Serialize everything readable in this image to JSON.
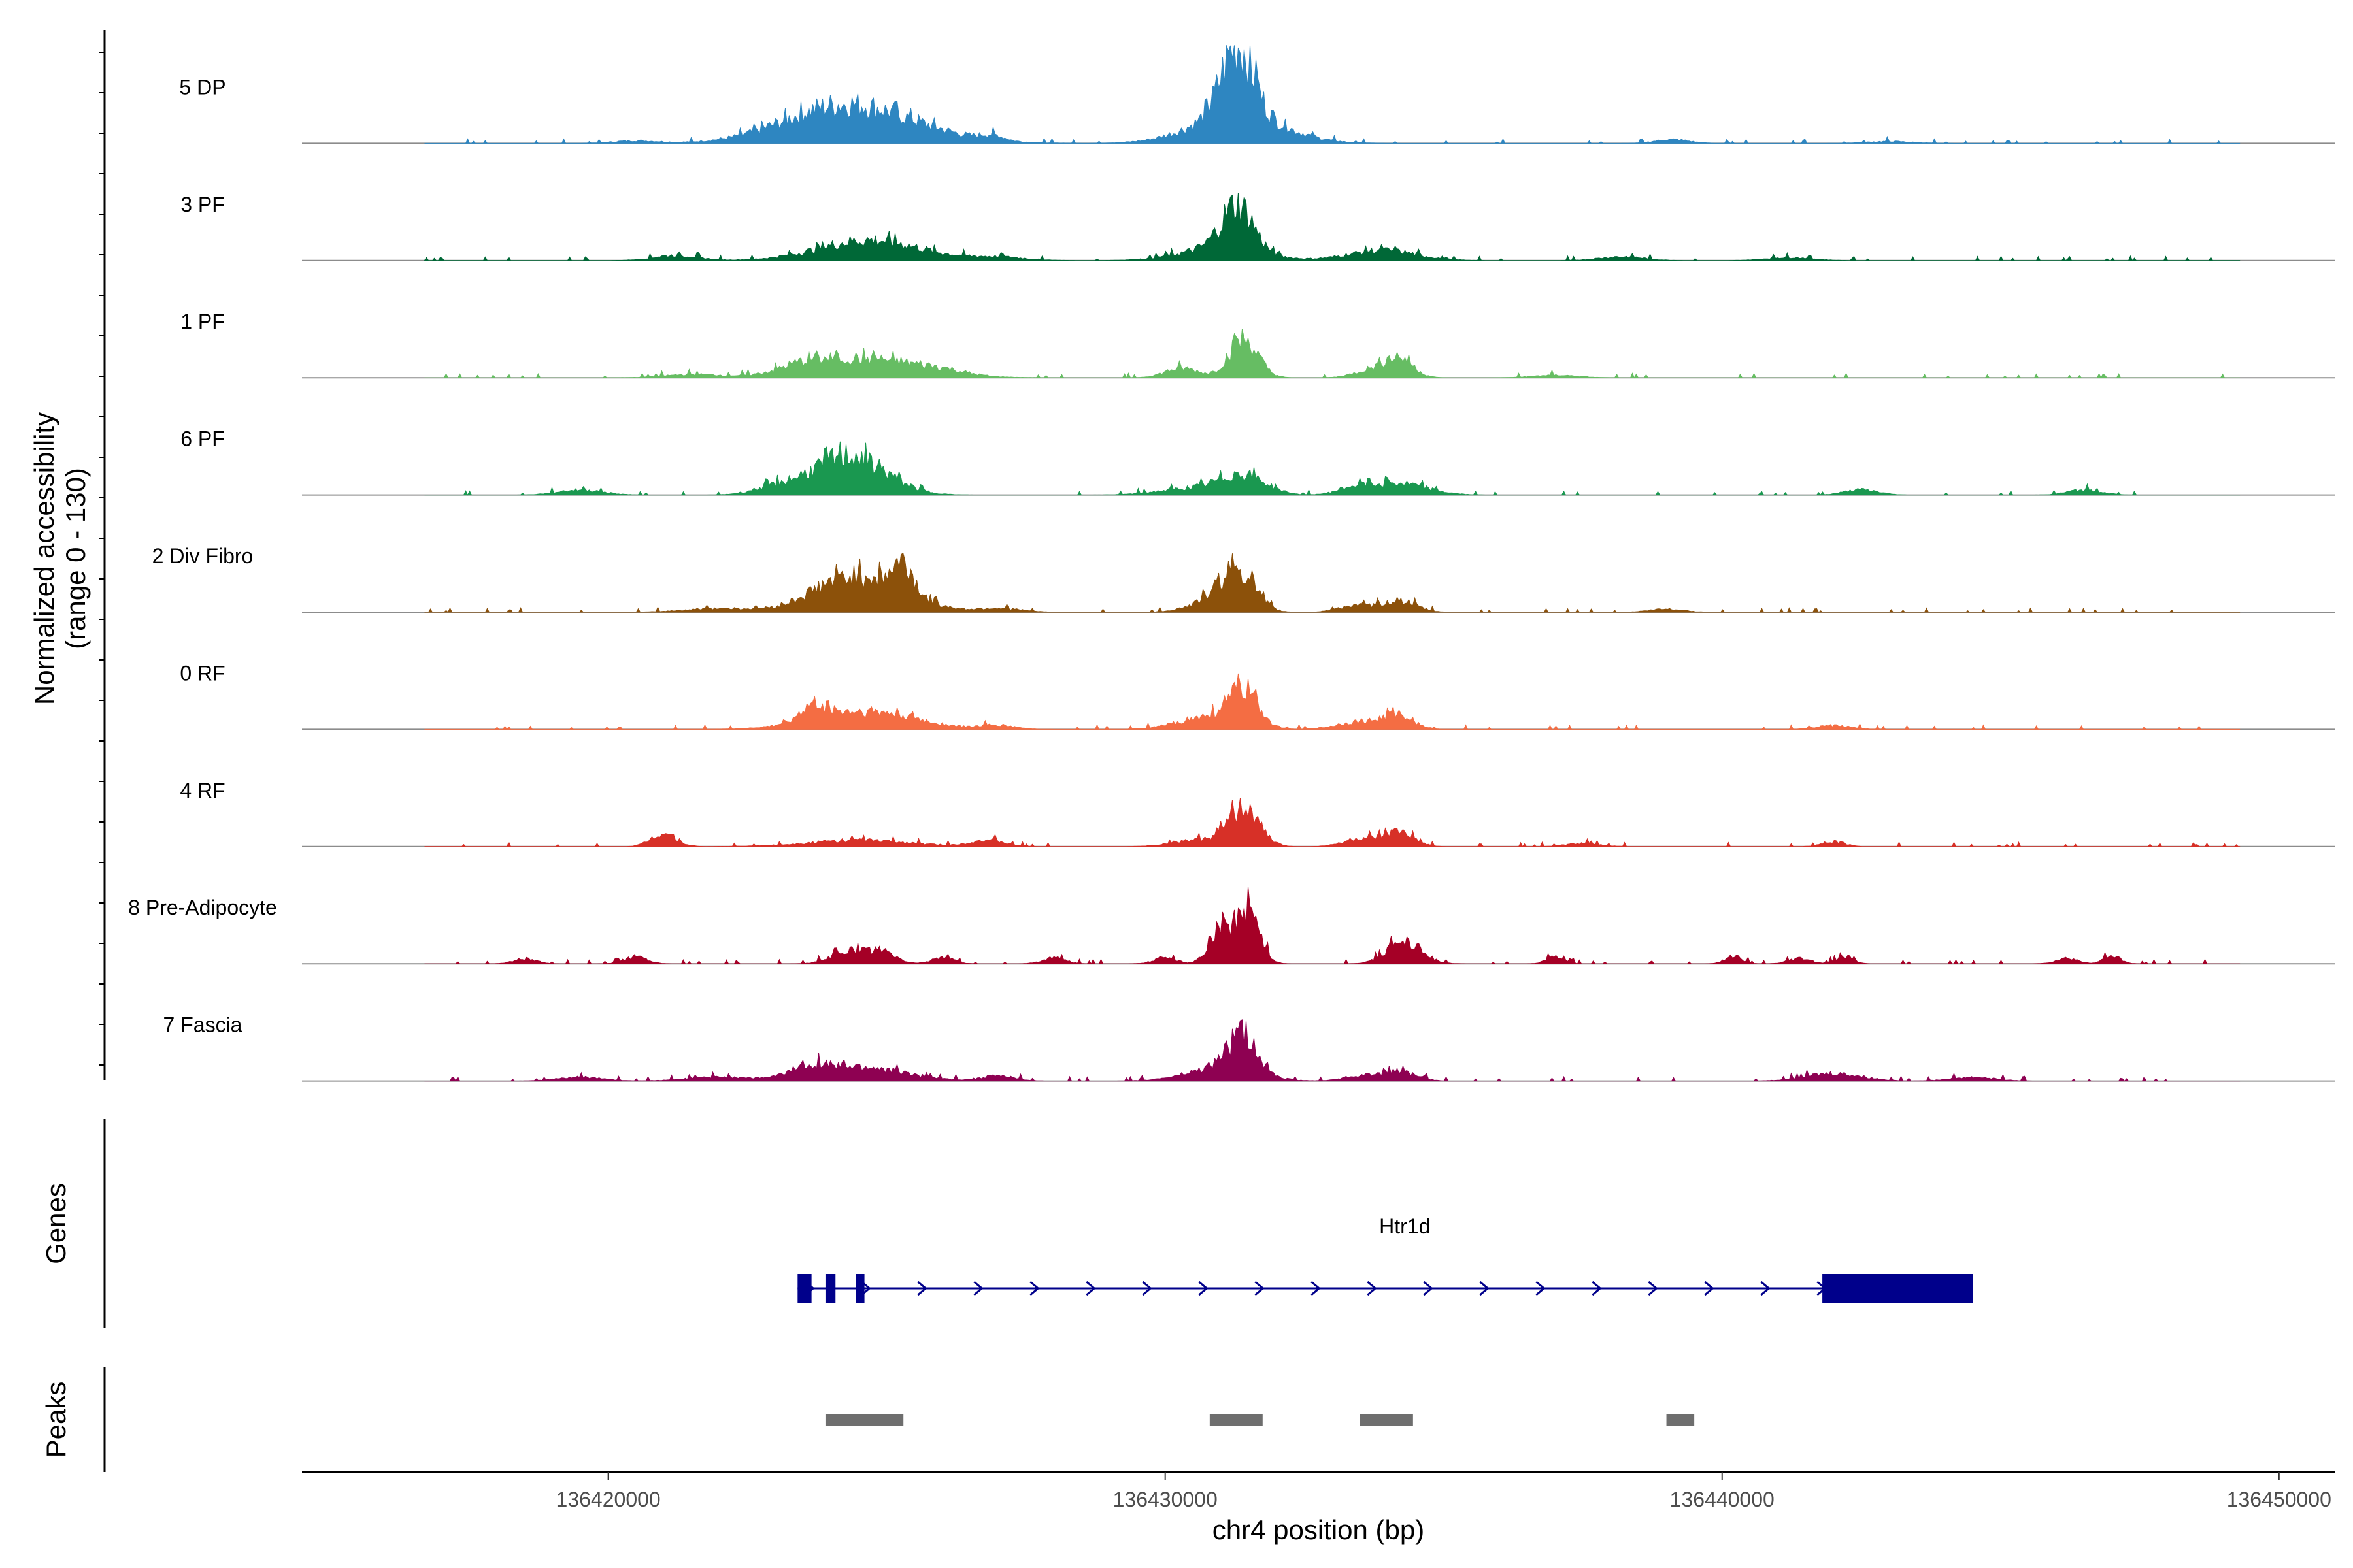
{
  "chart_data": {
    "type": "coverage",
    "ylabel_line1": "Normalized accessibility",
    "ylabel_line2": "(range 0 - 130)",
    "y_range": [
      0,
      130
    ],
    "xlabel": "chr4 position (bp)",
    "xlim": [
      136414500,
      136451000
    ],
    "data_start": 136416700,
    "data_end": 136449300,
    "x_ticks": [
      {
        "value": 136420000,
        "label": "136420000"
      },
      {
        "value": 136430000,
        "label": "136430000"
      },
      {
        "value": 136440000,
        "label": "136440000"
      },
      {
        "value": 136450000,
        "label": "136450000"
      }
    ],
    "tracks": [
      {
        "name": "5 DP",
        "color": "#2E86C1",
        "peaks": [
          [
            136424500,
            45,
            1200
          ],
          [
            136431300,
            110,
            280
          ],
          [
            136431300,
            45,
            800
          ],
          [
            136424000,
            18,
            900
          ],
          [
            136426900,
            8,
            200
          ],
          [
            136439100,
            6,
            300
          ],
          [
            136420500,
            4,
            400
          ],
          [
            136443000,
            3,
            400
          ]
        ]
      },
      {
        "name": "3 PF",
        "color": "#006837",
        "peaks": [
          [
            136424700,
            32,
            900
          ],
          [
            136431300,
            70,
            280
          ],
          [
            136431000,
            20,
            700
          ],
          [
            136433900,
            16,
            600
          ],
          [
            136421200,
            8,
            400
          ],
          [
            136427000,
            5,
            500
          ],
          [
            136438200,
            6,
            400
          ],
          [
            136441200,
            5,
            400
          ]
        ]
      },
      {
        "name": "1 PF",
        "color": "#66BD63",
        "peaks": [
          [
            136424600,
            30,
            1000
          ],
          [
            136431400,
            60,
            260
          ],
          [
            136430300,
            15,
            300
          ],
          [
            136434200,
            30,
            250
          ],
          [
            136433700,
            12,
            300
          ],
          [
            136423500,
            10,
            400
          ],
          [
            136421500,
            5,
            500
          ],
          [
            136426000,
            5,
            400
          ],
          [
            136437000,
            4,
            400
          ]
        ]
      },
      {
        "name": "6 PF",
        "color": "#1A9850",
        "peaks": [
          [
            136424500,
            42,
            600
          ],
          [
            136424000,
            25,
            600
          ],
          [
            136431400,
            30,
            400
          ],
          [
            136430500,
            10,
            600
          ],
          [
            136434200,
            18,
            500
          ],
          [
            136433400,
            10,
            300
          ],
          [
            136419500,
            8,
            400
          ],
          [
            136423000,
            10,
            400
          ],
          [
            136442500,
            8,
            300
          ],
          [
            136446500,
            8,
            300
          ]
        ]
      },
      {
        "name": "2 Div Fibro",
        "color": "#8C510A",
        "peaks": [
          [
            136424800,
            45,
            700
          ],
          [
            136424000,
            25,
            600
          ],
          [
            136425300,
            40,
            180
          ],
          [
            136431300,
            65,
            300
          ],
          [
            136430800,
            15,
            400
          ],
          [
            136434200,
            18,
            300
          ],
          [
            136433400,
            10,
            300
          ],
          [
            136422000,
            6,
            600
          ],
          [
            136427000,
            6,
            400
          ],
          [
            136439000,
            5,
            300
          ]
        ]
      },
      {
        "name": "0 RF",
        "color": "#F46D43",
        "peaks": [
          [
            136424600,
            28,
            900
          ],
          [
            136423700,
            22,
            250
          ],
          [
            136431400,
            55,
            280
          ],
          [
            136430700,
            18,
            500
          ],
          [
            136434200,
            22,
            260
          ],
          [
            136433500,
            12,
            400
          ],
          [
            136427000,
            6,
            300
          ],
          [
            136442000,
            6,
            300
          ]
        ]
      },
      {
        "name": "4 RF",
        "color": "#D73027",
        "peaks": [
          [
            136421000,
            22,
            220
          ],
          [
            136424500,
            10,
            900
          ],
          [
            136426800,
            10,
            300
          ],
          [
            136431400,
            60,
            280
          ],
          [
            136430500,
            10,
            400
          ],
          [
            136434200,
            22,
            260
          ],
          [
            136433500,
            12,
            300
          ],
          [
            136442000,
            8,
            200
          ],
          [
            136437500,
            5,
            300
          ]
        ]
      },
      {
        "name": "8 Pre-Adipocyte",
        "color": "#A50026",
        "peaks": [
          [
            136431000,
            60,
            200
          ],
          [
            136431500,
            85,
            200
          ],
          [
            136434300,
            38,
            300
          ],
          [
            136424300,
            20,
            300
          ],
          [
            136424900,
            18,
            250
          ],
          [
            136426000,
            10,
            200
          ],
          [
            136420500,
            12,
            200
          ],
          [
            136418500,
            8,
            200
          ],
          [
            136428000,
            10,
            200
          ],
          [
            136430000,
            10,
            200
          ],
          [
            136437000,
            12,
            150
          ],
          [
            136440200,
            12,
            150
          ],
          [
            136441400,
            8,
            200
          ],
          [
            136442200,
            12,
            150
          ],
          [
            136446200,
            8,
            200
          ],
          [
            136447000,
            12,
            150
          ]
        ]
      },
      {
        "name": "7 Fascia",
        "color": "#8E0152",
        "peaks": [
          [
            136431400,
            52,
            280
          ],
          [
            136431000,
            20,
            600
          ],
          [
            136424500,
            22,
            800
          ],
          [
            136423600,
            16,
            300
          ],
          [
            136422000,
            6,
            600
          ],
          [
            136427000,
            8,
            300
          ],
          [
            136434200,
            15,
            300
          ],
          [
            136433500,
            8,
            300
          ],
          [
            136442000,
            12,
            500
          ],
          [
            136444500,
            6,
            400
          ],
          [
            136419500,
            6,
            400
          ]
        ]
      }
    ],
    "gene": {
      "name": "Htr1d",
      "strand": "+",
      "start": 136423400,
      "end": 136444500,
      "exons": [
        [
          136423400,
          136423650
        ],
        [
          136423900,
          136424080
        ],
        [
          136424450,
          136424600
        ],
        [
          136441800,
          136444500
        ]
      ],
      "color": "#00008B"
    },
    "peaks": {
      "label": "Peaks",
      "color": "#6E6E6E",
      "regions": [
        [
          136423900,
          136425300
        ],
        [
          136430800,
          136431750
        ],
        [
          136433500,
          136434450
        ],
        [
          136439000,
          136439500
        ]
      ]
    },
    "genes_label": "Genes"
  }
}
